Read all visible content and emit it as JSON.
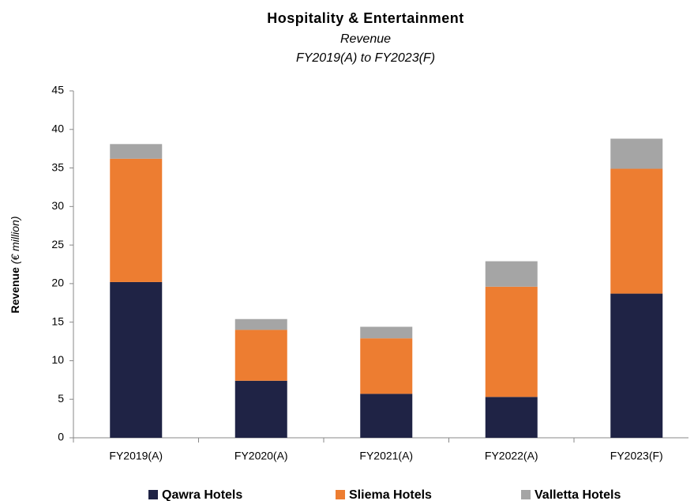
{
  "chart_data": {
    "type": "bar",
    "stacked": true,
    "title": "Hospitality & Entertainment",
    "subtitle": [
      "Revenue",
      "FY2019(A) to FY2023(F)"
    ],
    "ylabel": [
      "Revenue",
      "(€ million)"
    ],
    "categories": [
      "FY2019(A)",
      "FY2020(A)",
      "FY2021(A)",
      "FY2022(A)",
      "FY2023(F)"
    ],
    "series": [
      {
        "name": "Qawra Hotels",
        "color": "#1f2345",
        "values": [
          20.2,
          7.4,
          5.7,
          5.3,
          18.7
        ]
      },
      {
        "name": "Sliema Hotels",
        "color": "#ed7d31",
        "values": [
          16.0,
          6.6,
          7.2,
          14.3,
          16.2
        ]
      },
      {
        "name": "Valletta Hotels",
        "color": "#a5a5a5",
        "values": [
          1.9,
          1.4,
          1.5,
          3.3,
          3.9
        ]
      }
    ],
    "ylim": [
      0,
      45
    ],
    "yticks": [
      0,
      5,
      10,
      15,
      20,
      25,
      30,
      35,
      40,
      45
    ],
    "grid": false,
    "legend": "bottom"
  }
}
